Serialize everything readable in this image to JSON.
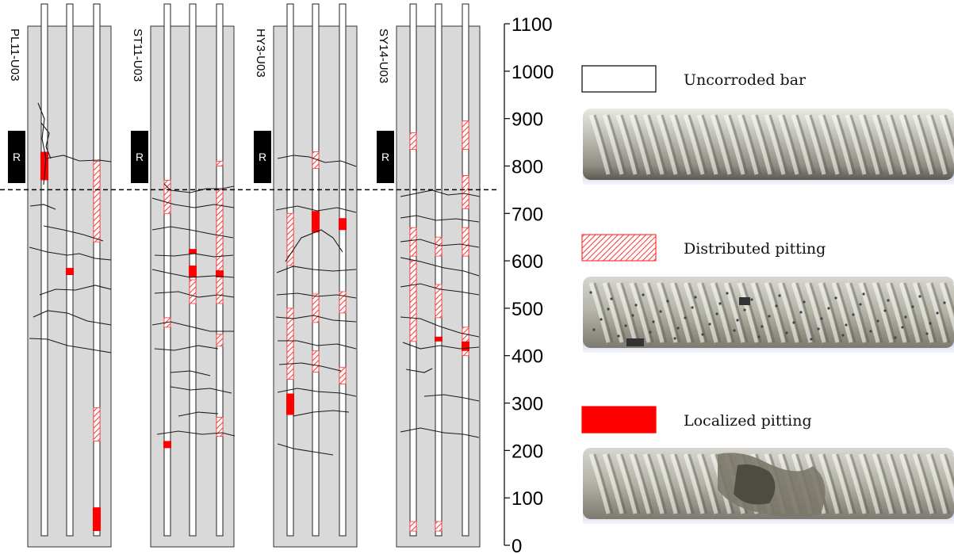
{
  "axis": {
    "ticks": [
      0,
      100,
      200,
      300,
      400,
      500,
      600,
      700,
      800,
      900,
      1000,
      1100
    ],
    "range": [
      0,
      1100
    ],
    "reference_level": 750
  },
  "colors": {
    "wall": "#d9d9d9",
    "localized": "#ff0000",
    "distributed_stroke": "#ff3333",
    "crack": "#1a1a1a",
    "label_box": "#000000",
    "label_text": "#ffffff"
  },
  "specimens": [
    {
      "name": "PL11-U03",
      "marker": "R",
      "bars": [
        {
          "localized": [
            [
              770,
              830
            ]
          ],
          "distributed": []
        },
        {
          "localized": [
            [
              570,
              585
            ]
          ],
          "distributed": []
        },
        {
          "localized": [
            [
              30,
              80
            ]
          ],
          "distributed": [
            [
              640,
              810
            ],
            [
              220,
              290
            ]
          ]
        }
      ]
    },
    {
      "name": "ST11-U03",
      "marker": "R",
      "bars": [
        {
          "localized": [
            [
              205,
              220
            ]
          ],
          "distributed": [
            [
              700,
              770
            ],
            [
              460,
              480
            ]
          ]
        },
        {
          "localized": [
            [
              565,
              590
            ],
            [
              615,
              625
            ]
          ],
          "distributed": [
            [
              510,
              560
            ]
          ]
        },
        {
          "localized": [
            [
              565,
              580
            ]
          ],
          "distributed": [
            [
              800,
              810
            ],
            [
              510,
              750
            ],
            [
              420,
              445
            ],
            [
              230,
              270
            ]
          ]
        }
      ]
    },
    {
      "name": "HY3-U03",
      "marker": "R",
      "bars": [
        {
          "localized": [
            [
              275,
              320
            ]
          ],
          "distributed": [
            [
              590,
              700
            ],
            [
              350,
              500
            ]
          ]
        },
        {
          "localized": [
            [
              660,
              705
            ]
          ],
          "distributed": [
            [
              795,
              830
            ],
            [
              470,
              530
            ],
            [
              365,
              410
            ]
          ]
        },
        {
          "localized": [
            [
              665,
              690
            ]
          ],
          "distributed": [
            [
              490,
              535
            ],
            [
              340,
              375
            ]
          ]
        }
      ]
    },
    {
      "name": "SY14-U03",
      "marker": "R",
      "bars": [
        {
          "localized": [],
          "distributed": [
            [
              835,
              870
            ],
            [
              610,
              670
            ],
            [
              430,
              600
            ],
            [
              30,
              50
            ]
          ]
        },
        {
          "localized": [
            [
              430,
              440
            ]
          ],
          "distributed": [
            [
              480,
              550
            ],
            [
              610,
              650
            ],
            [
              30,
              50
            ]
          ]
        },
        {
          "localized": [
            [
              410,
              430
            ]
          ],
          "distributed": [
            [
              835,
              895
            ],
            [
              710,
              780
            ],
            [
              610,
              670
            ],
            [
              400,
              460
            ]
          ]
        }
      ]
    }
  ],
  "legend": [
    {
      "kind": "uncorroded",
      "label": "Uncorroded bar",
      "photo": "uncorroded-bar-photo"
    },
    {
      "kind": "distributed",
      "label": "Distributed pitting",
      "photo": "distributed-pitting-bar-photo"
    },
    {
      "kind": "localized",
      "label": "Localized pitting",
      "photo": "localized-pitting-bar-photo"
    }
  ]
}
